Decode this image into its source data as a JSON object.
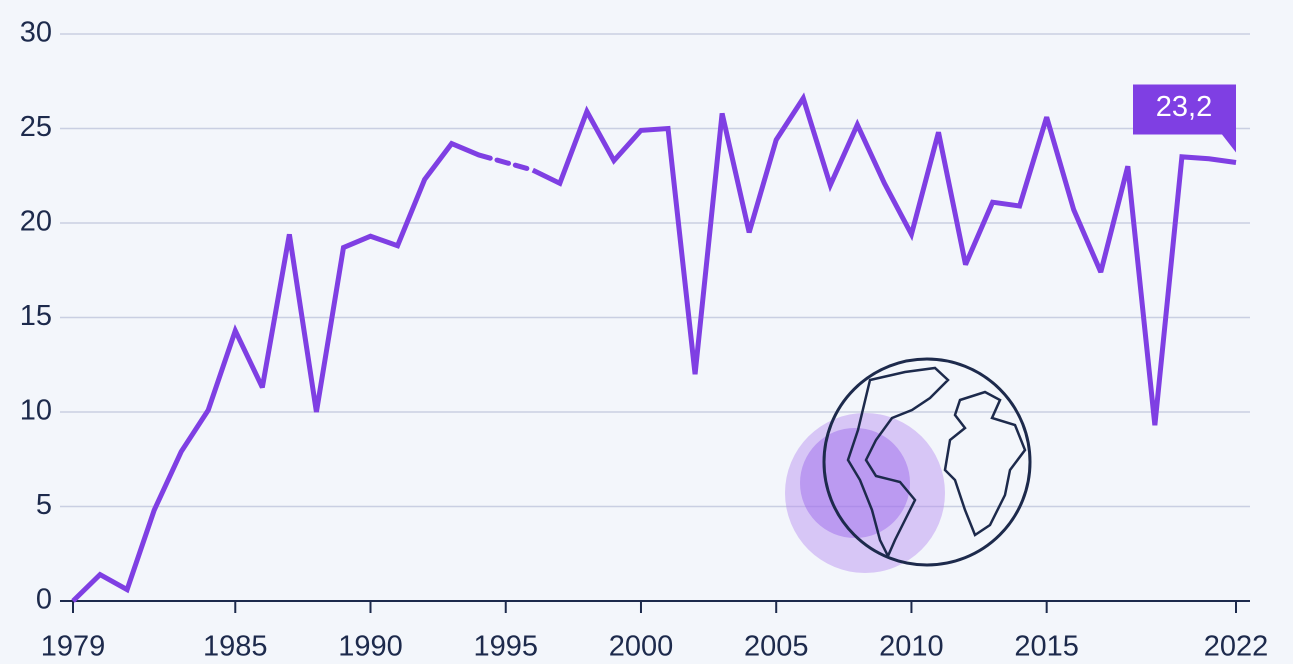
{
  "chart_data": {
    "type": "line",
    "x": [
      1979,
      1980,
      1981,
      1982,
      1983,
      1984,
      1985,
      1986,
      1987,
      1988,
      1989,
      1990,
      1991,
      1992,
      1993,
      1994,
      1995,
      1996,
      1997,
      1998,
      1999,
      2000,
      2001,
      2002,
      2003,
      2004,
      2005,
      2006,
      2007,
      2008,
      2009,
      2010,
      2011,
      2012,
      2013,
      2014,
      2015,
      2016,
      2017,
      2018,
      2019,
      2020,
      2021,
      2022
    ],
    "values": [
      0,
      1.4,
      0.6,
      4.8,
      7.9,
      10.1,
      14.3,
      11.3,
      19.4,
      10.0,
      18.7,
      19.3,
      18.8,
      22.3,
      24.2,
      23.6,
      null,
      22.8,
      22.1,
      25.9,
      23.3,
      24.9,
      25.0,
      12.0,
      25.8,
      19.5,
      24.4,
      26.6,
      22.0,
      25.2,
      22.1,
      19.4,
      24.8,
      17.8,
      21.1,
      20.9,
      25.6,
      20.7,
      17.4,
      23.0,
      9.3,
      23.5,
      23.4,
      23.2
    ],
    "value_labels": [
      null,
      null,
      null,
      null,
      null,
      null,
      null,
      null,
      null,
      null,
      null,
      null,
      null,
      null,
      null,
      null,
      null,
      null,
      null,
      null,
      null,
      null,
      null,
      null,
      null,
      null,
      null,
      null,
      null,
      null,
      null,
      null,
      null,
      null,
      null,
      null,
      null,
      null,
      null,
      null,
      null,
      null,
      null,
      "23,2"
    ],
    "color": "#7f3fe3",
    "xlim": [
      1979,
      2022
    ],
    "xticks": [
      1979,
      1985,
      1990,
      1995,
      2000,
      2005,
      2010,
      2015,
      2022
    ],
    "ylim": [
      0,
      30
    ],
    "yticks": [
      0,
      5,
      10,
      15,
      20,
      25,
      30
    ],
    "grid": true
  }
}
